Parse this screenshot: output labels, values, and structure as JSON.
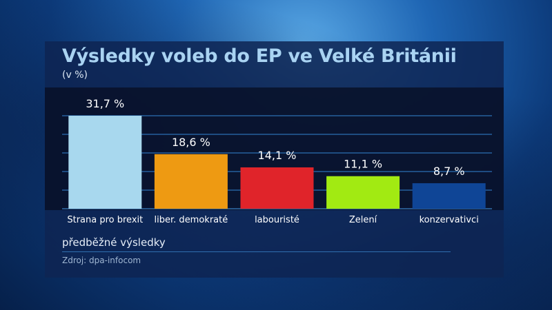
{
  "title": "Výsledky voleb do EP ve Velké Británii",
  "subtitle": "(v %)",
  "note": "předběžné výsledky",
  "source": "Zdroj: dpa-infocom",
  "chart_data": {
    "type": "bar",
    "title": "Výsledky voleb do EP ve Velké Británii",
    "subtitle": "(v %)",
    "categories": [
      "Strana pro brexit",
      "liber. demokraté",
      "labouristé",
      "Zelení",
      "konzervativci"
    ],
    "values": [
      31.7,
      18.6,
      14.1,
      11.1,
      8.7
    ],
    "data_labels": [
      "31,7 %",
      "18,6 %",
      "14,1 %",
      "11,1 %",
      "8,7 %"
    ],
    "colors": [
      "#a8d8ee",
      "#ee9a12",
      "#e0242a",
      "#a2ea12",
      "#0f4596"
    ],
    "ylim": [
      0,
      31.7
    ],
    "grid": true
  }
}
